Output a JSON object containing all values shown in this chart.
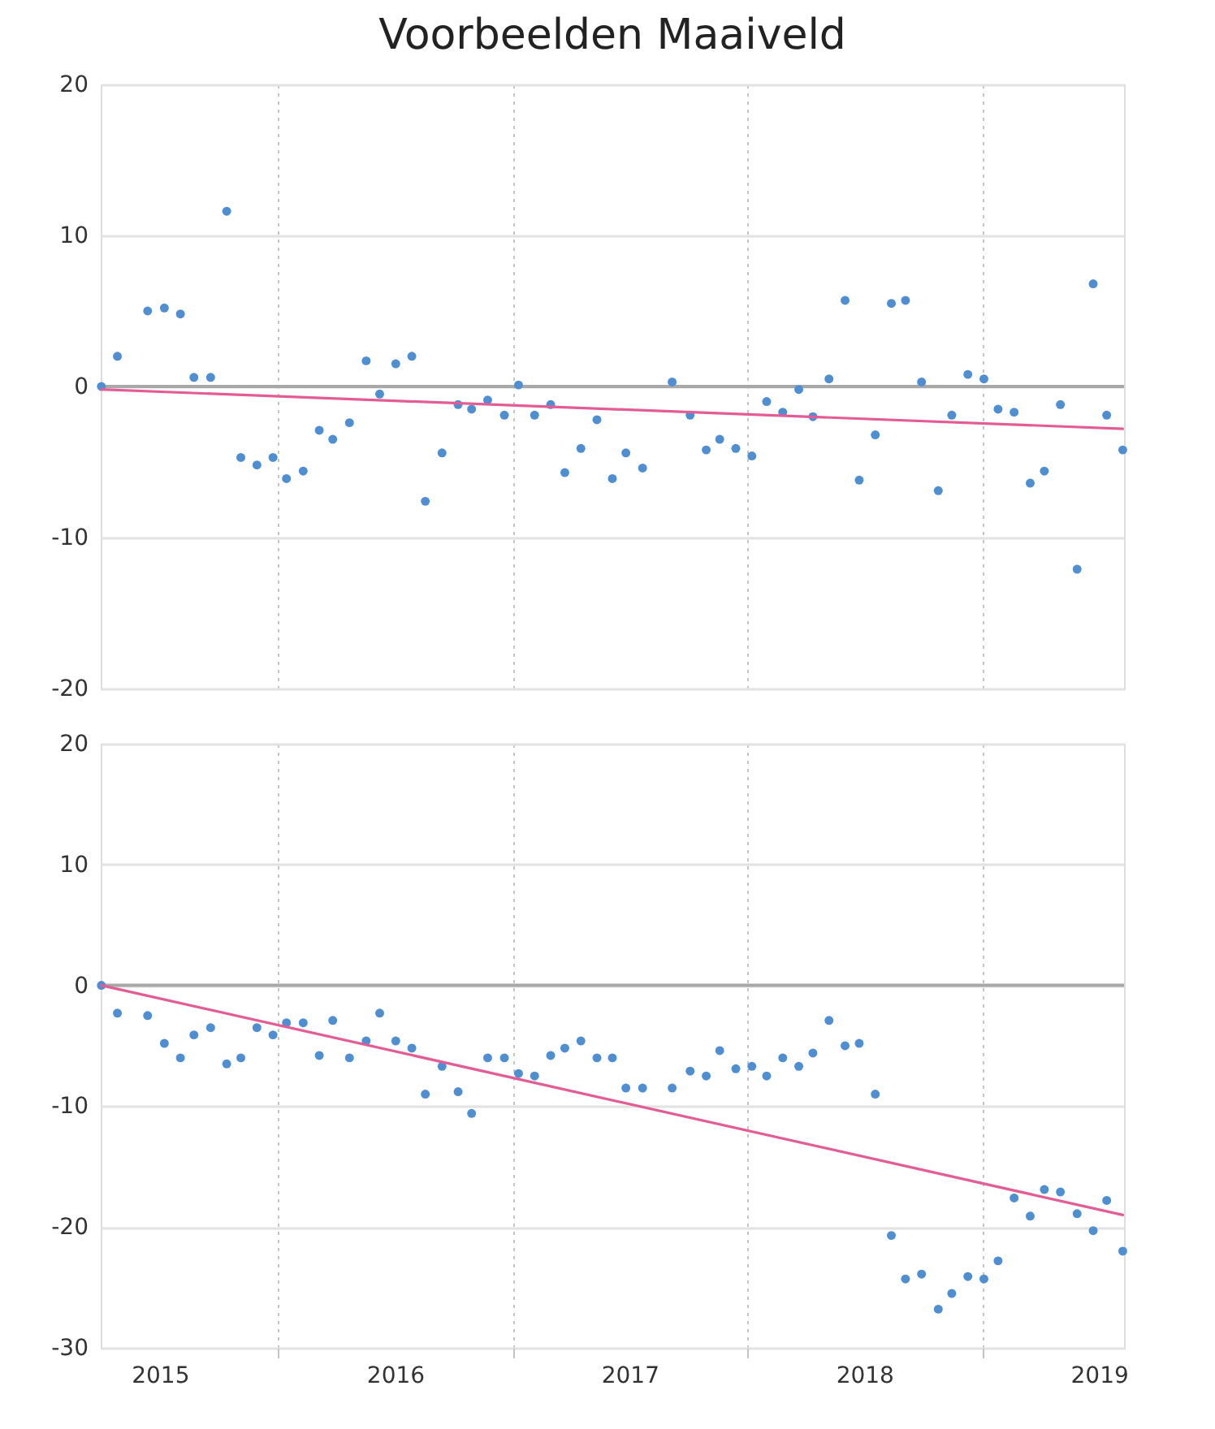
{
  "chart_data": [
    {
      "type": "scatter",
      "title": "Voorbeelden Maaiveld",
      "grid": true,
      "tick_labels": "y",
      "x": [
        "2015-04-02",
        "2015-04-27",
        "2015-06-13",
        "2015-07-09",
        "2015-08-03",
        "2015-08-24",
        "2015-09-19",
        "2015-10-14",
        "2015-11-05",
        "2015-11-30",
        "2015-12-25",
        "2016-01-15",
        "2016-02-10",
        "2016-03-06",
        "2016-03-27",
        "2016-04-22",
        "2016-05-18",
        "2016-06-08",
        "2016-07-03",
        "2016-07-28",
        "2016-08-18",
        "2016-09-13",
        "2016-10-08",
        "2016-10-29",
        "2016-11-23",
        "2016-12-19",
        "2017-01-10",
        "2017-02-04",
        "2017-03-01",
        "2017-03-23",
        "2017-04-17",
        "2017-05-12",
        "2017-06-05",
        "2017-06-26",
        "2017-07-22",
        "2017-09-06",
        "2017-10-04",
        "2017-10-29",
        "2017-11-19",
        "2017-12-14",
        "2018-01-08",
        "2018-01-31",
        "2018-02-25",
        "2018-03-22",
        "2018-04-13",
        "2018-05-08",
        "2018-06-02",
        "2018-06-24",
        "2018-07-19",
        "2018-08-13",
        "2018-09-04",
        "2018-09-29",
        "2018-10-25",
        "2018-11-15",
        "2018-12-10",
        "2019-01-04",
        "2019-01-26",
        "2019-02-20",
        "2019-03-17",
        "2019-04-08",
        "2019-05-03",
        "2019-05-29",
        "2019-06-23",
        "2019-07-14",
        "2019-08-08"
      ],
      "series": [
        {
          "color": "#4f8fd1",
          "marker": "circle",
          "values": [
            0,
            2.0,
            5.0,
            5.2,
            4.8,
            0.6,
            0.6,
            11.6,
            -4.7,
            -5.2,
            -4.7,
            -6.1,
            -5.6,
            -2.9,
            -3.5,
            -2.4,
            1.7,
            -0.5,
            1.5,
            2.0,
            -7.6,
            -4.4,
            -1.2,
            -1.5,
            -0.9,
            -1.9,
            0.1,
            -1.9,
            -1.2,
            -5.7,
            -4.1,
            -2.2,
            -6.1,
            -4.4,
            -5.4,
            0.3,
            -1.9,
            -4.2,
            -3.5,
            -4.1,
            -4.6,
            -1.0,
            -1.7,
            -0.2,
            -2.0,
            0.5,
            5.7,
            -6.2,
            -3.2,
            5.5,
            5.7,
            0.3,
            -6.9,
            -1.9,
            0.8,
            0.5,
            -1.5,
            -1.7,
            -6.4,
            -5.6,
            -1.2,
            -12.1,
            6.8,
            -1.9,
            -4.2
          ]
        },
        {
          "type": "line",
          "color": "#e45c94",
          "line_style": "solid",
          "x": [
            "2015-04-02",
            "2019-08-08"
          ],
          "values": [
            -0.2,
            -2.8
          ]
        }
      ],
      "xlim": [
        "2015-04-01",
        "2019-08-10"
      ],
      "xticks": [
        {
          "value": "2016-01-01",
          "label": null
        },
        {
          "value": "2017-01-01",
          "label": null
        },
        {
          "value": "2018-01-01",
          "label": null
        },
        {
          "value": "2019-01-01",
          "label": null
        }
      ],
      "ylim": [
        -20,
        20
      ],
      "yticks": [
        -20,
        -10,
        0,
        10,
        20
      ],
      "ref_lines": [
        {
          "axis": "y",
          "value": 0,
          "color": "#a8a8a8"
        }
      ]
    },
    {
      "type": "scatter",
      "grid": true,
      "x": [
        "2015-04-02",
        "2015-04-27",
        "2015-06-13",
        "2015-07-09",
        "2015-08-03",
        "2015-08-24",
        "2015-09-19",
        "2015-10-14",
        "2015-11-05",
        "2015-11-30",
        "2015-12-25",
        "2016-01-15",
        "2016-02-10",
        "2016-03-06",
        "2016-03-27",
        "2016-04-22",
        "2016-05-18",
        "2016-06-08",
        "2016-07-03",
        "2016-07-28",
        "2016-08-18",
        "2016-09-13",
        "2016-10-08",
        "2016-10-29",
        "2016-11-23",
        "2016-12-19",
        "2017-01-10",
        "2017-02-04",
        "2017-03-01",
        "2017-03-23",
        "2017-04-17",
        "2017-05-12",
        "2017-06-05",
        "2017-06-26",
        "2017-07-22",
        "2017-09-06",
        "2017-10-04",
        "2017-10-29",
        "2017-11-19",
        "2017-12-14",
        "2018-01-08",
        "2018-01-31",
        "2018-02-25",
        "2018-03-22",
        "2018-04-13",
        "2018-05-08",
        "2018-06-02",
        "2018-06-24",
        "2018-07-19",
        "2018-08-13",
        "2018-09-04",
        "2018-09-29",
        "2018-10-25",
        "2018-11-15",
        "2018-12-10",
        "2019-01-04",
        "2019-01-26",
        "2019-02-20",
        "2019-03-17",
        "2019-04-08",
        "2019-05-03",
        "2019-05-29",
        "2019-06-23",
        "2019-07-14",
        "2019-08-08"
      ],
      "series": [
        {
          "color": "#4f8fd1",
          "marker": "circle",
          "values": [
            0,
            -2.3,
            -2.5,
            -4.8,
            -6.0,
            -4.1,
            -3.5,
            -6.5,
            -6.0,
            -3.5,
            -4.1,
            -3.1,
            -3.1,
            -5.8,
            -2.9,
            -6.0,
            -4.6,
            -2.3,
            -4.6,
            -5.2,
            -9.0,
            -6.7,
            -8.8,
            -10.6,
            -6.0,
            -6.0,
            -7.3,
            -7.5,
            -5.8,
            -5.2,
            -4.6,
            -6.0,
            -6.0,
            -8.5,
            -8.5,
            -8.5,
            -7.1,
            -7.5,
            -5.4,
            -6.9,
            -6.7,
            -7.5,
            -6.0,
            -6.7,
            -5.6,
            -2.9,
            -5.0,
            -4.8,
            -9.0,
            -20.7,
            -24.3,
            -23.9,
            -26.8,
            -25.5,
            -24.1,
            -24.3,
            -22.8,
            -17.6,
            -19.1,
            -16.9,
            -17.1,
            -18.9,
            -20.3,
            -17.8,
            -22.0
          ]
        },
        {
          "type": "line",
          "color": "#e45c94",
          "line_style": "solid",
          "x": [
            "2015-04-02",
            "2019-08-08"
          ],
          "values": [
            0,
            -19.0
          ]
        }
      ],
      "xlim": [
        "2015-04-01",
        "2019-08-10"
      ],
      "xticks": [
        {
          "value": "2015-07-02",
          "label": "2015"
        },
        {
          "value": "2016-01-01",
          "label": null
        },
        {
          "value": "2016-07-02",
          "label": "2016"
        },
        {
          "value": "2017-01-01",
          "label": null
        },
        {
          "value": "2017-07-02",
          "label": "2017"
        },
        {
          "value": "2018-01-01",
          "label": null
        },
        {
          "value": "2018-07-02",
          "label": "2018"
        },
        {
          "value": "2019-01-01",
          "label": null
        },
        {
          "value": "2019-07-02",
          "label": "2019"
        }
      ],
      "ylim": [
        -30,
        20
      ],
      "yticks": [
        -30,
        -20,
        -10,
        0,
        10,
        20
      ],
      "ref_lines": [
        {
          "axis": "y",
          "value": 0,
          "color": "#a8a8a8"
        }
      ]
    }
  ]
}
